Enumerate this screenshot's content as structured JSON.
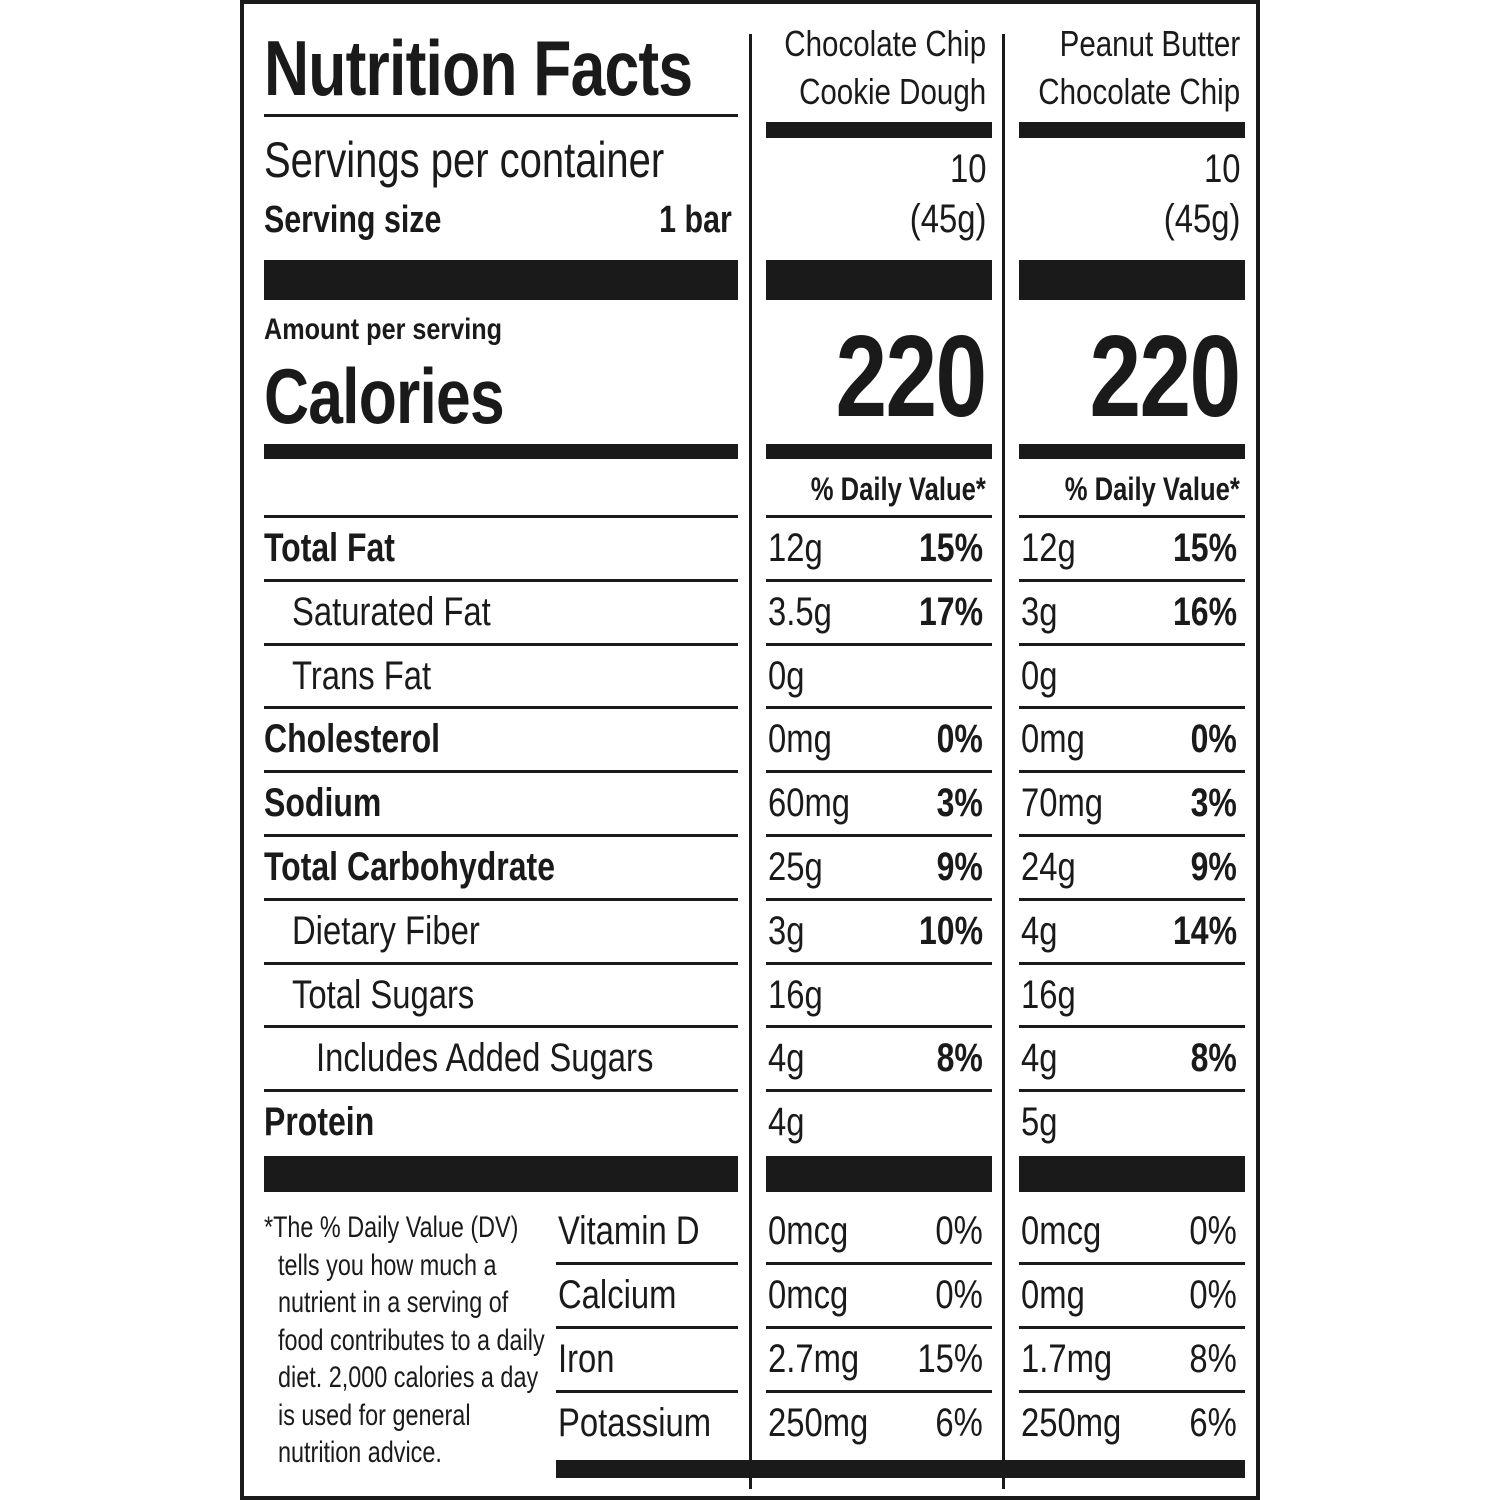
{
  "title": "Nutrition Facts",
  "servings_label": "Servings per container",
  "serving_size_label": "Serving size",
  "serving_size_value": "1 bar",
  "amount_per_serving": "Amount per serving",
  "calories_label": "Calories",
  "dv_header": "% Daily Value*",
  "columns": [
    {
      "name_line1": "Chocolate Chip",
      "name_line2": "Cookie Dough",
      "servings": "10",
      "serving_weight": "(45g)",
      "calories": "220",
      "nutrients": [
        {
          "amount": "12g",
          "dv": "15%"
        },
        {
          "amount": "3.5g",
          "dv": "17%"
        },
        {
          "amount": "0g",
          "dv": ""
        },
        {
          "amount": "0mg",
          "dv": "0%"
        },
        {
          "amount": "60mg",
          "dv": "3%"
        },
        {
          "amount": "25g",
          "dv": "9%"
        },
        {
          "amount": "3g",
          "dv": "10%"
        },
        {
          "amount": "16g",
          "dv": ""
        },
        {
          "amount": "4g",
          "dv": "8%"
        },
        {
          "amount": "4g",
          "dv": ""
        }
      ],
      "vitamins": [
        {
          "amount": "0mcg",
          "dv": "0%"
        },
        {
          "amount": "0mcg",
          "dv": "0%"
        },
        {
          "amount": "2.7mg",
          "dv": "15%"
        },
        {
          "amount": "250mg",
          "dv": "6%"
        }
      ]
    },
    {
      "name_line1": "Peanut Butter",
      "name_line2": "Chocolate Chip",
      "servings": "10",
      "serving_weight": "(45g)",
      "calories": "220",
      "nutrients": [
        {
          "amount": "12g",
          "dv": "15%"
        },
        {
          "amount": "3g",
          "dv": "16%"
        },
        {
          "amount": "0g",
          "dv": ""
        },
        {
          "amount": "0mg",
          "dv": "0%"
        },
        {
          "amount": "70mg",
          "dv": "3%"
        },
        {
          "amount": "24g",
          "dv": "9%"
        },
        {
          "amount": "4g",
          "dv": "14%"
        },
        {
          "amount": "16g",
          "dv": ""
        },
        {
          "amount": "4g",
          "dv": "8%"
        },
        {
          "amount": "5g",
          "dv": ""
        }
      ],
      "vitamins": [
        {
          "amount": "0mcg",
          "dv": "0%"
        },
        {
          "amount": "0mg",
          "dv": "0%"
        },
        {
          "amount": "1.7mg",
          "dv": "8%"
        },
        {
          "amount": "250mg",
          "dv": "6%"
        }
      ]
    }
  ],
  "nutrient_labels": [
    {
      "label": "Total Fat",
      "bold": true,
      "indent": 0
    },
    {
      "label": "Saturated Fat",
      "bold": false,
      "indent": 1
    },
    {
      "label": "Trans Fat",
      "bold": false,
      "indent": 1
    },
    {
      "label": "Cholesterol",
      "bold": true,
      "indent": 0
    },
    {
      "label": "Sodium",
      "bold": true,
      "indent": 0
    },
    {
      "label": "Total Carbohydrate",
      "bold": true,
      "indent": 0
    },
    {
      "label": "Dietary Fiber",
      "bold": false,
      "indent": 1
    },
    {
      "label": "Total Sugars",
      "bold": false,
      "indent": 1
    },
    {
      "label": "Includes Added Sugars",
      "bold": false,
      "indent": 2
    },
    {
      "label": "Protein",
      "bold": true,
      "indent": 0
    }
  ],
  "vitamin_labels": [
    "Vitamin D",
    "Calcium",
    "Iron",
    "Potassium"
  ],
  "footnote_lines": [
    "*The % Daily Value (DV)",
    "tells you how much a",
    "nutrient in a serving of",
    "food contributes to a daily",
    "diet. 2,000 calories a day",
    "is used for general",
    "nutrition advice."
  ]
}
